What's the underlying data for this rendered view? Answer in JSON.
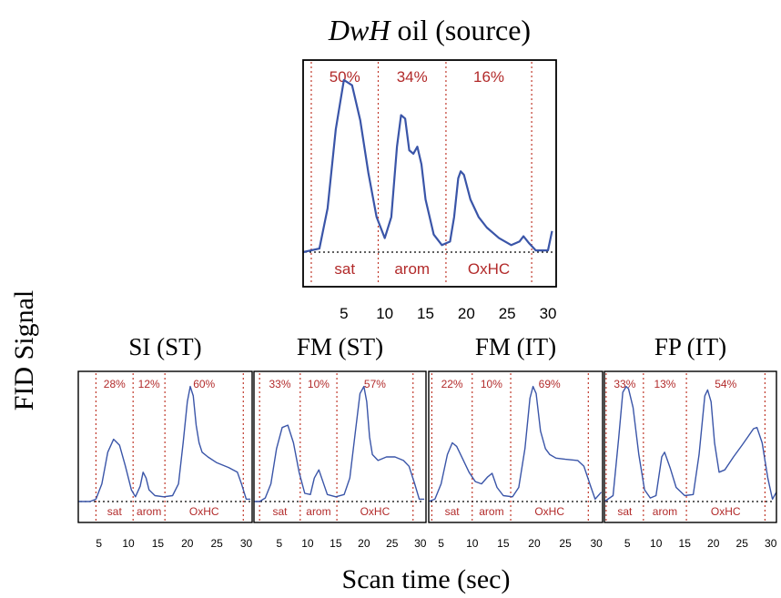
{
  "figure": {
    "ylabel": "FID Signal",
    "xlabel": "Scan time (sec)"
  },
  "chart_data": [
    {
      "type": "line",
      "title_italic": "DwH",
      "title_rest": " oil (source)",
      "xlim": [
        0,
        31
      ],
      "xticks": [
        5,
        10,
        15,
        20,
        25,
        30
      ],
      "dividers": [
        1,
        9.2,
        17.5,
        28
      ],
      "regions": [
        {
          "name": "sat",
          "percent": "50%"
        },
        {
          "name": "arom",
          "percent": "34%"
        },
        {
          "name": "OxHC",
          "percent": "16%"
        }
      ],
      "series": [
        {
          "x": [
            0,
            2,
            3,
            4,
            5,
            6,
            7,
            8,
            9,
            10,
            10.8,
            11.5,
            12,
            12.5,
            13,
            13.5,
            14,
            14.5,
            15,
            16,
            17,
            18,
            18.5,
            19,
            19.3,
            19.7,
            20.5,
            21.5,
            22.5,
            24,
            25.5,
            26.5,
            27,
            27.7,
            28.5,
            30,
            30.5
          ],
          "y": [
            0,
            0.02,
            0.25,
            0.7,
            0.98,
            0.95,
            0.75,
            0.45,
            0.2,
            0.08,
            0.2,
            0.6,
            0.78,
            0.76,
            0.58,
            0.56,
            0.6,
            0.5,
            0.3,
            0.1,
            0.04,
            0.06,
            0.2,
            0.42,
            0.46,
            0.44,
            0.3,
            0.2,
            0.14,
            0.08,
            0.04,
            0.06,
            0.09,
            0.05,
            0.01,
            0.01,
            0.12
          ]
        }
      ]
    },
    {
      "type": "line",
      "title": "SI (ST)",
      "xlim": [
        1.5,
        31
      ],
      "xticks": [
        5,
        10,
        15,
        20,
        25,
        30
      ],
      "dividers": [
        4.5,
        10.8,
        16.2,
        29.5
      ],
      "regions": [
        {
          "name": "sat",
          "percent": "28%"
        },
        {
          "name": "arom",
          "percent": "12%"
        },
        {
          "name": "OxHC",
          "percent": "60%"
        }
      ],
      "series": [
        {
          "x": [
            1.5,
            3.5,
            4.5,
            5.5,
            6.5,
            7.5,
            8.5,
            9.5,
            10.5,
            11.2,
            12,
            12.5,
            13,
            13.5,
            14.5,
            16,
            17.5,
            18.5,
            19.3,
            20,
            20.5,
            21,
            21.5,
            22,
            22.5,
            23.5,
            25,
            27,
            28.5,
            29.2,
            30,
            30.7
          ],
          "y": [
            0,
            0,
            0.02,
            0.15,
            0.42,
            0.53,
            0.48,
            0.3,
            0.1,
            0.04,
            0.13,
            0.25,
            0.2,
            0.1,
            0.05,
            0.04,
            0.05,
            0.15,
            0.5,
            0.85,
            0.98,
            0.9,
            0.65,
            0.5,
            0.42,
            0.38,
            0.33,
            0.29,
            0.25,
            0.15,
            0.02,
            0.02
          ]
        }
      ]
    },
    {
      "type": "line",
      "title": "FM (ST)",
      "xlim": [
        0.5,
        31
      ],
      "xticks": [
        5,
        10,
        15,
        20,
        25,
        30
      ],
      "dividers": [
        1.5,
        8.7,
        15.2,
        28.7
      ],
      "regions": [
        {
          "name": "sat",
          "percent": "33%"
        },
        {
          "name": "arom",
          "percent": "10%"
        },
        {
          "name": "OxHC",
          "percent": "57%"
        }
      ],
      "series": [
        {
          "x": [
            0.5,
            1.5,
            2.5,
            3.5,
            4.5,
            5.5,
            6.5,
            7.5,
            8.5,
            9.5,
            10.5,
            11.2,
            12,
            12.5,
            13.5,
            15,
            16.5,
            17.5,
            18.5,
            19.3,
            20,
            20.5,
            21,
            21.5,
            22.5,
            24,
            25.5,
            27,
            28,
            29,
            29.8,
            30.7
          ],
          "y": [
            0,
            0,
            0.03,
            0.15,
            0.45,
            0.63,
            0.65,
            0.5,
            0.25,
            0.07,
            0.06,
            0.2,
            0.27,
            0.2,
            0.06,
            0.04,
            0.06,
            0.2,
            0.6,
            0.92,
            0.98,
            0.85,
            0.55,
            0.4,
            0.35,
            0.38,
            0.38,
            0.35,
            0.3,
            0.15,
            0.02,
            0.02
          ]
        }
      ]
    },
    {
      "type": "line",
      "title": "FM (IT)",
      "xlim": [
        3,
        31
      ],
      "xticks": [
        5,
        10,
        15,
        20,
        25,
        30
      ],
      "dividers": [
        3.5,
        10,
        16.2,
        28.7
      ],
      "regions": [
        {
          "name": "sat",
          "percent": "22%"
        },
        {
          "name": "arom",
          "percent": "10%"
        },
        {
          "name": "OxHC",
          "percent": "69%"
        }
      ],
      "series": [
        {
          "x": [
            3,
            4,
            5,
            6,
            6.8,
            7.5,
            8.5,
            9.5,
            10.5,
            11.5,
            12.5,
            13.2,
            14,
            15,
            16.5,
            17.5,
            18.5,
            19.3,
            19.8,
            20.3,
            21,
            21.8,
            22.5,
            23.5,
            25,
            27,
            28,
            29,
            29.8,
            30.8
          ],
          "y": [
            0,
            0.02,
            0.15,
            0.4,
            0.5,
            0.47,
            0.36,
            0.25,
            0.17,
            0.15,
            0.21,
            0.24,
            0.12,
            0.05,
            0.04,
            0.12,
            0.45,
            0.88,
            0.98,
            0.92,
            0.6,
            0.45,
            0.4,
            0.37,
            0.36,
            0.35,
            0.3,
            0.14,
            0.02,
            0.08
          ]
        }
      ]
    },
    {
      "type": "line",
      "title": "FP (IT)",
      "xlim": [
        1,
        31
      ],
      "xticks": [
        5,
        10,
        15,
        20,
        25,
        30
      ],
      "dividers": [
        1.3,
        7.8,
        15.3,
        29
      ],
      "regions": [
        {
          "name": "sat",
          "percent": "33%"
        },
        {
          "name": "arom",
          "percent": "13%"
        },
        {
          "name": "OxHC",
          "percent": "54%"
        }
      ],
      "series": [
        {
          "x": [
            1,
            2.5,
            3.5,
            4.2,
            4.8,
            5.2,
            6,
            7,
            8,
            9,
            10,
            11,
            11.5,
            12.5,
            13.5,
            15,
            16.5,
            17.5,
            18.5,
            19,
            19.6,
            20.2,
            21,
            22,
            23.5,
            25,
            26,
            27,
            27.6,
            28.5,
            29.5,
            30.3,
            31
          ],
          "y": [
            0,
            0.05,
            0.55,
            0.93,
            0.98,
            0.96,
            0.8,
            0.4,
            0.1,
            0.03,
            0.05,
            0.38,
            0.42,
            0.28,
            0.12,
            0.05,
            0.06,
            0.4,
            0.9,
            0.95,
            0.85,
            0.5,
            0.25,
            0.27,
            0.38,
            0.48,
            0.55,
            0.62,
            0.63,
            0.5,
            0.2,
            0.02,
            0.08
          ]
        }
      ]
    }
  ]
}
